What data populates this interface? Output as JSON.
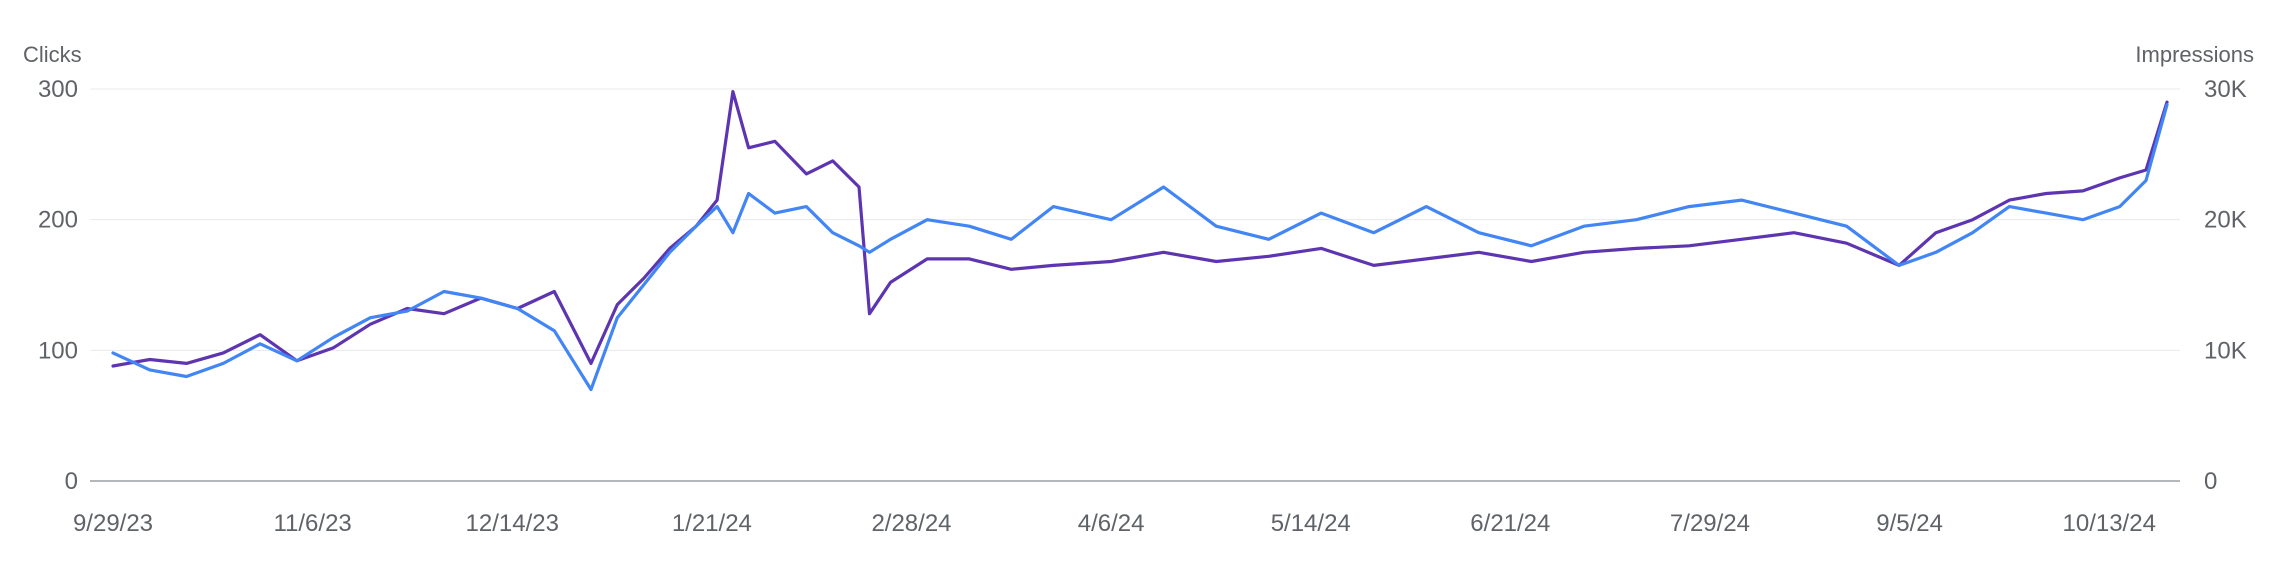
{
  "chart_data": {
    "type": "line",
    "left_axis": {
      "label": "Clicks",
      "ticks": [
        "0",
        "100",
        "200",
        "300"
      ],
      "tick_values": [
        0,
        100,
        200,
        300
      ],
      "range": [
        0,
        300
      ]
    },
    "right_axis": {
      "label": "Impressions",
      "ticks": [
        "0",
        "10K",
        "20K",
        "30K"
      ],
      "tick_values": [
        0,
        10000,
        20000,
        30000
      ],
      "range": [
        0,
        30000
      ]
    },
    "x_axis": {
      "range": [
        "2023-09-29",
        "2024-10-24"
      ],
      "ticks": [
        "9/29/23",
        "11/6/23",
        "12/14/23",
        "1/21/24",
        "2/28/24",
        "4/6/24",
        "5/14/24",
        "6/21/24",
        "7/29/24",
        "9/5/24",
        "10/13/24"
      ],
      "tick_dates": [
        "2023-09-29",
        "2023-11-06",
        "2023-12-14",
        "2024-01-21",
        "2024-02-28",
        "2024-04-06",
        "2024-05-14",
        "2024-06-21",
        "2024-07-29",
        "2024-09-05",
        "2024-10-13"
      ]
    },
    "grid": true,
    "legend": "none",
    "series": [
      {
        "axis": "left",
        "color": "#5e35b1",
        "points": [
          [
            "2023-09-29",
            88
          ],
          [
            "2023-10-06",
            93
          ],
          [
            "2023-10-13",
            90
          ],
          [
            "2023-10-20",
            98
          ],
          [
            "2023-10-27",
            112
          ],
          [
            "2023-11-03",
            92
          ],
          [
            "2023-11-10",
            102
          ],
          [
            "2023-11-17",
            120
          ],
          [
            "2023-11-24",
            132
          ],
          [
            "2023-12-01",
            128
          ],
          [
            "2023-12-08",
            140
          ],
          [
            "2023-12-15",
            132
          ],
          [
            "2023-12-22",
            145
          ],
          [
            "2023-12-29",
            90
          ],
          [
            "2024-01-03",
            135
          ],
          [
            "2024-01-08",
            155
          ],
          [
            "2024-01-13",
            178
          ],
          [
            "2024-01-18",
            195
          ],
          [
            "2024-01-22",
            215
          ],
          [
            "2024-01-25",
            298
          ],
          [
            "2024-01-28",
            255
          ],
          [
            "2024-02-02",
            260
          ],
          [
            "2024-02-08",
            235
          ],
          [
            "2024-02-13",
            245
          ],
          [
            "2024-02-18",
            225
          ],
          [
            "2024-02-20",
            128
          ],
          [
            "2024-02-24",
            152
          ],
          [
            "2024-03-02",
            170
          ],
          [
            "2024-03-10",
            170
          ],
          [
            "2024-03-18",
            162
          ],
          [
            "2024-03-26",
            165
          ],
          [
            "2024-04-06",
            168
          ],
          [
            "2024-04-16",
            175
          ],
          [
            "2024-04-26",
            168
          ],
          [
            "2024-05-06",
            172
          ],
          [
            "2024-05-16",
            178
          ],
          [
            "2024-05-26",
            165
          ],
          [
            "2024-06-05",
            170
          ],
          [
            "2024-06-15",
            175
          ],
          [
            "2024-06-25",
            168
          ],
          [
            "2024-07-05",
            175
          ],
          [
            "2024-07-15",
            178
          ],
          [
            "2024-07-25",
            180
          ],
          [
            "2024-08-04",
            185
          ],
          [
            "2024-08-14",
            190
          ],
          [
            "2024-08-24",
            182
          ],
          [
            "2024-09-03",
            165
          ],
          [
            "2024-09-10",
            190
          ],
          [
            "2024-09-17",
            200
          ],
          [
            "2024-09-24",
            215
          ],
          [
            "2024-10-01",
            220
          ],
          [
            "2024-10-08",
            222
          ],
          [
            "2024-10-15",
            232
          ],
          [
            "2024-10-20",
            238
          ],
          [
            "2024-10-24",
            290
          ]
        ]
      },
      {
        "axis": "right",
        "color": "#4285f4",
        "points": [
          [
            "2023-09-29",
            9800
          ],
          [
            "2023-10-06",
            8500
          ],
          [
            "2023-10-13",
            8000
          ],
          [
            "2023-10-20",
            9000
          ],
          [
            "2023-10-27",
            10500
          ],
          [
            "2023-11-03",
            9200
          ],
          [
            "2023-11-10",
            11000
          ],
          [
            "2023-11-17",
            12500
          ],
          [
            "2023-11-24",
            13000
          ],
          [
            "2023-12-01",
            14500
          ],
          [
            "2023-12-08",
            14000
          ],
          [
            "2023-12-15",
            13200
          ],
          [
            "2023-12-22",
            11500
          ],
          [
            "2023-12-29",
            7000
          ],
          [
            "2024-01-03",
            12500
          ],
          [
            "2024-01-08",
            15000
          ],
          [
            "2024-01-13",
            17500
          ],
          [
            "2024-01-18",
            19500
          ],
          [
            "2024-01-22",
            21000
          ],
          [
            "2024-01-25",
            19000
          ],
          [
            "2024-01-28",
            22000
          ],
          [
            "2024-02-02",
            20500
          ],
          [
            "2024-02-08",
            21000
          ],
          [
            "2024-02-13",
            19000
          ],
          [
            "2024-02-18",
            18000
          ],
          [
            "2024-02-20",
            17500
          ],
          [
            "2024-02-24",
            18500
          ],
          [
            "2024-03-02",
            20000
          ],
          [
            "2024-03-10",
            19500
          ],
          [
            "2024-03-18",
            18500
          ],
          [
            "2024-03-26",
            21000
          ],
          [
            "2024-04-06",
            20000
          ],
          [
            "2024-04-16",
            22500
          ],
          [
            "2024-04-26",
            19500
          ],
          [
            "2024-05-06",
            18500
          ],
          [
            "2024-05-16",
            20500
          ],
          [
            "2024-05-26",
            19000
          ],
          [
            "2024-06-05",
            21000
          ],
          [
            "2024-06-15",
            19000
          ],
          [
            "2024-06-25",
            18000
          ],
          [
            "2024-07-05",
            19500
          ],
          [
            "2024-07-15",
            20000
          ],
          [
            "2024-07-25",
            21000
          ],
          [
            "2024-08-04",
            21500
          ],
          [
            "2024-08-14",
            20500
          ],
          [
            "2024-08-24",
            19500
          ],
          [
            "2024-09-03",
            16500
          ],
          [
            "2024-09-10",
            17500
          ],
          [
            "2024-09-17",
            19000
          ],
          [
            "2024-09-24",
            21000
          ],
          [
            "2024-10-01",
            20500
          ],
          [
            "2024-10-08",
            20000
          ],
          [
            "2024-10-15",
            21000
          ],
          [
            "2024-10-20",
            23000
          ],
          [
            "2024-10-24",
            28800
          ]
        ]
      }
    ]
  }
}
